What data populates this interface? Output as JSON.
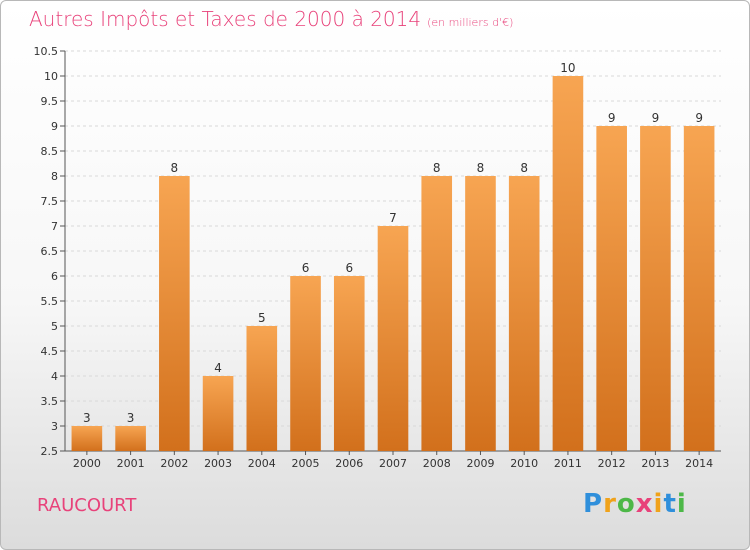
{
  "title": {
    "main": "Autres Impôts et Taxes de 2000 à 2014",
    "unit": "(en milliers d'€)"
  },
  "commune": "RAUCOURT",
  "logo": "Proxiti",
  "colors": {
    "bar_light": "#f5a04e",
    "bar_dark": "#d8741f",
    "title": "#e8427a"
  },
  "chart_data": {
    "type": "bar",
    "title": "Autres Impôts et Taxes de 2000 à 2014",
    "subtitle": "(en milliers d'€)",
    "categories": [
      "2000",
      "2001",
      "2002",
      "2003",
      "2004",
      "2005",
      "2006",
      "2007",
      "2008",
      "2009",
      "2010",
      "2011",
      "2012",
      "2013",
      "2014"
    ],
    "values": [
      3,
      3,
      8,
      4,
      5,
      6,
      6,
      7,
      8,
      8,
      8,
      10,
      9,
      9,
      9
    ],
    "ylim": [
      2.5,
      10.5
    ],
    "yticks": [
      "2.5",
      "3",
      "3.5",
      "4",
      "4.5",
      "5",
      "5.5",
      "6",
      "6.5",
      "7",
      "7.5",
      "8",
      "8.5",
      "9",
      "9.5",
      "10",
      "10.5"
    ],
    "grid": true,
    "xlabel": "",
    "ylabel": ""
  }
}
